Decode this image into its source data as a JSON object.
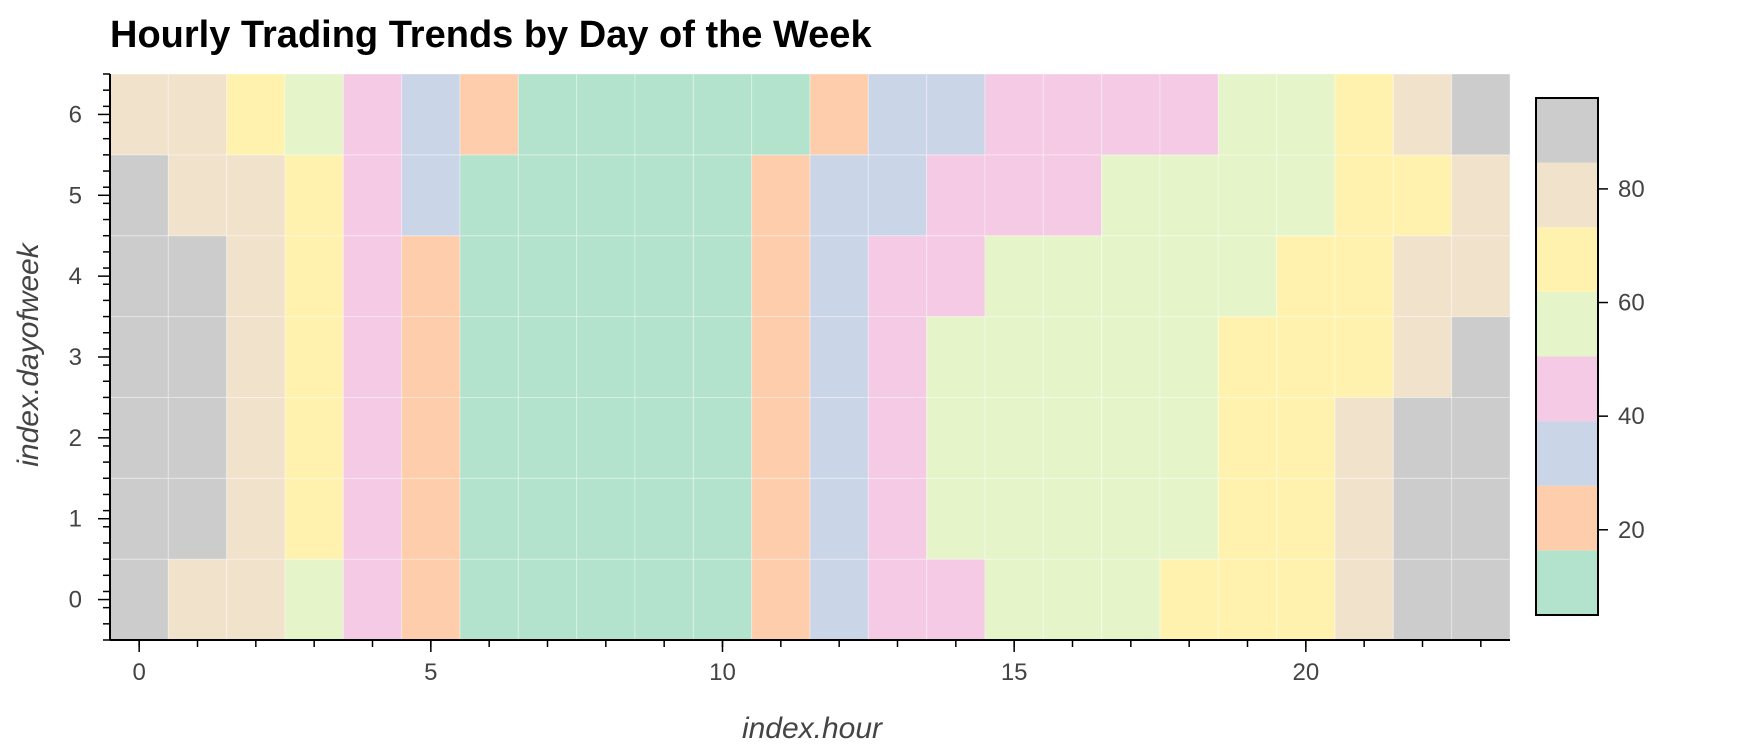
{
  "chart_data": {
    "type": "heatmap",
    "title": "Hourly Trading Trends by Day of the Week",
    "xlabel": "index.hour",
    "ylabel": "index.dayofweek",
    "x": [
      0,
      1,
      2,
      3,
      4,
      5,
      6,
      7,
      8,
      9,
      10,
      11,
      12,
      13,
      14,
      15,
      16,
      17,
      18,
      19,
      20,
      21,
      22,
      23
    ],
    "y": [
      0,
      1,
      2,
      3,
      4,
      5,
      6
    ],
    "xlim": [
      -0.5,
      23.5
    ],
    "ylim": [
      -0.5,
      6.5
    ],
    "x_ticks": [
      0,
      5,
      10,
      15,
      20
    ],
    "y_ticks": [
      0,
      1,
      2,
      3,
      4,
      5,
      6
    ],
    "values": [
      [
        90,
        80,
        80,
        60,
        45,
        20,
        10,
        10,
        10,
        10,
        10,
        20,
        35,
        45,
        45,
        60,
        60,
        60,
        70,
        70,
        70,
        80,
        90,
        90
      ],
      [
        90,
        90,
        80,
        70,
        45,
        20,
        10,
        10,
        10,
        10,
        10,
        20,
        35,
        45,
        60,
        60,
        60,
        60,
        60,
        70,
        70,
        80,
        90,
        90
      ],
      [
        90,
        90,
        80,
        70,
        45,
        20,
        10,
        10,
        10,
        10,
        10,
        20,
        35,
        45,
        60,
        60,
        60,
        60,
        60,
        70,
        70,
        80,
        90,
        90
      ],
      [
        90,
        90,
        80,
        70,
        45,
        20,
        10,
        10,
        10,
        10,
        10,
        20,
        35,
        45,
        60,
        60,
        60,
        60,
        60,
        70,
        70,
        70,
        80,
        90
      ],
      [
        90,
        90,
        80,
        70,
        45,
        20,
        10,
        10,
        10,
        10,
        10,
        20,
        35,
        45,
        45,
        60,
        60,
        60,
        60,
        60,
        70,
        70,
        80,
        80
      ],
      [
        90,
        80,
        80,
        70,
        45,
        35,
        10,
        10,
        10,
        10,
        10,
        20,
        35,
        35,
        45,
        45,
        45,
        60,
        60,
        60,
        60,
        70,
        70,
        80
      ],
      [
        80,
        80,
        70,
        60,
        45,
        35,
        20,
        10,
        10,
        10,
        10,
        10,
        20,
        35,
        35,
        45,
        45,
        45,
        45,
        60,
        60,
        70,
        80,
        90
      ]
    ],
    "colorbar": {
      "range": [
        5,
        96
      ],
      "ticks": [
        20,
        40,
        60,
        80
      ],
      "colors": [
        "#b3e2cd",
        "#fdcdac",
        "#cbd5e8",
        "#f4cae4",
        "#e6f5c9",
        "#fff2ae",
        "#f1e2cc",
        "#cccccc"
      ]
    },
    "grid": false
  }
}
